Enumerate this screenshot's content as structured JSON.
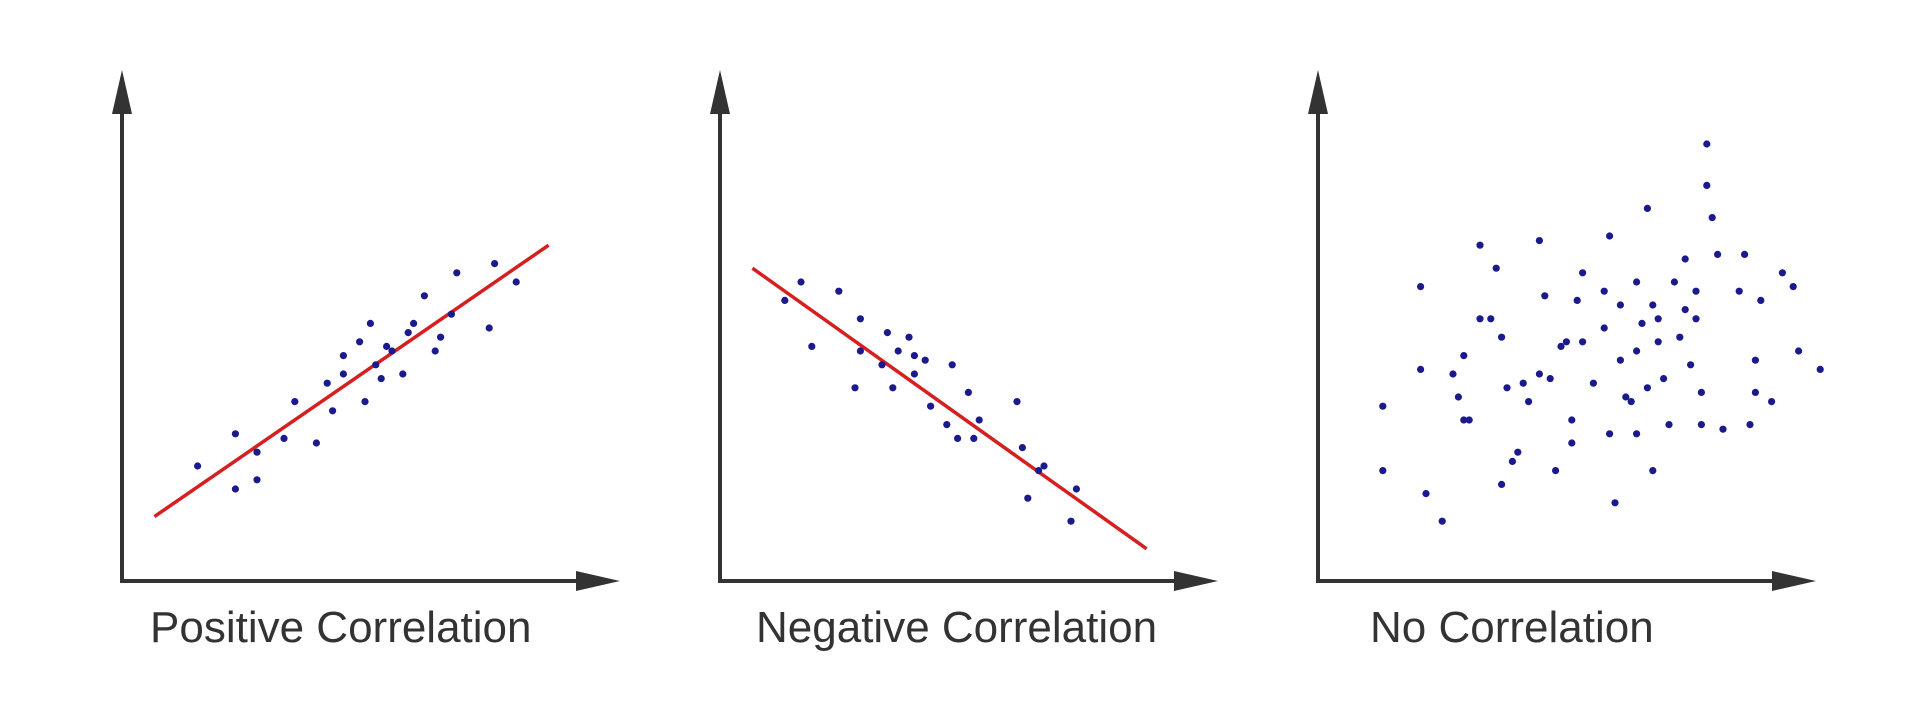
{
  "colors": {
    "axis": "#333333",
    "trend": "#d61f1f",
    "point": "#1a1a8c",
    "text": "#333333",
    "background": "#ffffff"
  },
  "chart_data": [
    {
      "type": "scatter",
      "title": "Positive Correlation",
      "xlabel": "",
      "ylabel": "",
      "xlim": [
        0,
        100
      ],
      "ylim": [
        0,
        100
      ],
      "grid": false,
      "trend_line": {
        "x": [
          6,
          79
        ],
        "y": [
          14,
          73
        ]
      },
      "points": {
        "x": [
          14,
          21,
          21,
          25,
          25,
          30,
          32,
          36,
          38,
          39,
          41,
          41,
          44,
          45,
          46,
          47,
          48,
          49,
          50,
          52,
          53,
          54,
          56,
          58,
          59,
          61,
          62,
          68,
          69,
          73
        ],
        "y": [
          25,
          20,
          32,
          22,
          28,
          31,
          39,
          30,
          43,
          37,
          45,
          49,
          52,
          39,
          56,
          47,
          44,
          51,
          50,
          45,
          54,
          56,
          62,
          50,
          53,
          58,
          67,
          55,
          69,
          65
        ]
      }
    },
    {
      "type": "scatter",
      "title": "Negative Correlation",
      "xlabel": "",
      "ylabel": "",
      "xlim": [
        0,
        100
      ],
      "ylim": [
        0,
        100
      ],
      "grid": false,
      "trend_line": {
        "x": [
          6,
          79
        ],
        "y": [
          68,
          7
        ]
      },
      "points": {
        "x": [
          12,
          15,
          17,
          22,
          25,
          26,
          26,
          30,
          31,
          32,
          33,
          35,
          36,
          36,
          38,
          39,
          42,
          43,
          44,
          46,
          47,
          48,
          55,
          56,
          57,
          59,
          60,
          65,
          66
        ],
        "y": [
          61,
          65,
          51,
          63,
          42,
          50,
          57,
          47,
          54,
          42,
          50,
          53,
          45,
          49,
          48,
          38,
          34,
          47,
          31,
          41,
          31,
          35,
          39,
          29,
          18,
          24,
          25,
          13,
          20
        ]
      }
    },
    {
      "type": "scatter",
      "title": "No Correlation",
      "xlabel": "",
      "ylabel": "",
      "xlim": [
        0,
        100
      ],
      "ylim": [
        0,
        100
      ],
      "grid": false,
      "points": {
        "x": [
          12,
          12,
          19,
          19,
          20,
          23,
          25,
          26,
          27,
          27,
          28,
          30,
          30,
          32,
          33,
          34,
          34,
          35,
          36,
          37,
          38,
          39,
          41,
          41,
          42,
          43,
          44,
          45,
          46,
          47,
          47,
          48,
          49,
          49,
          51,
          53,
          53,
          54,
          54,
          55,
          56,
          56,
          57,
          58,
          59,
          59,
          59,
          60,
          61,
          61,
          62,
          62,
          63,
          63,
          64,
          65,
          66,
          67,
          68,
          68,
          69,
          70,
          70,
          71,
          71,
          72,
          72,
          73,
          74,
          75,
          78,
          79,
          80,
          81,
          81,
          82,
          84,
          86,
          88,
          89,
          93
        ],
        "y": [
          38,
          24,
          64,
          46,
          19,
          13,
          45,
          40,
          35,
          49,
          35,
          57,
          73,
          57,
          68,
          53,
          21,
          42,
          26,
          28,
          43,
          39,
          74,
          45,
          62,
          44,
          24,
          51,
          52,
          35,
          30,
          61,
          52,
          67,
          43,
          63,
          55,
          75,
          32,
          17,
          60,
          48,
          40,
          39,
          50,
          65,
          32,
          56,
          42,
          81,
          60,
          24,
          52,
          57,
          44,
          34,
          65,
          53,
          59,
          70,
          47,
          57,
          63,
          41,
          34,
          95,
          86,
          79,
          71,
          33,
          63,
          71,
          34,
          48,
          41,
          61,
          39,
          67,
          64,
          50,
          46
        ]
      }
    }
  ]
}
